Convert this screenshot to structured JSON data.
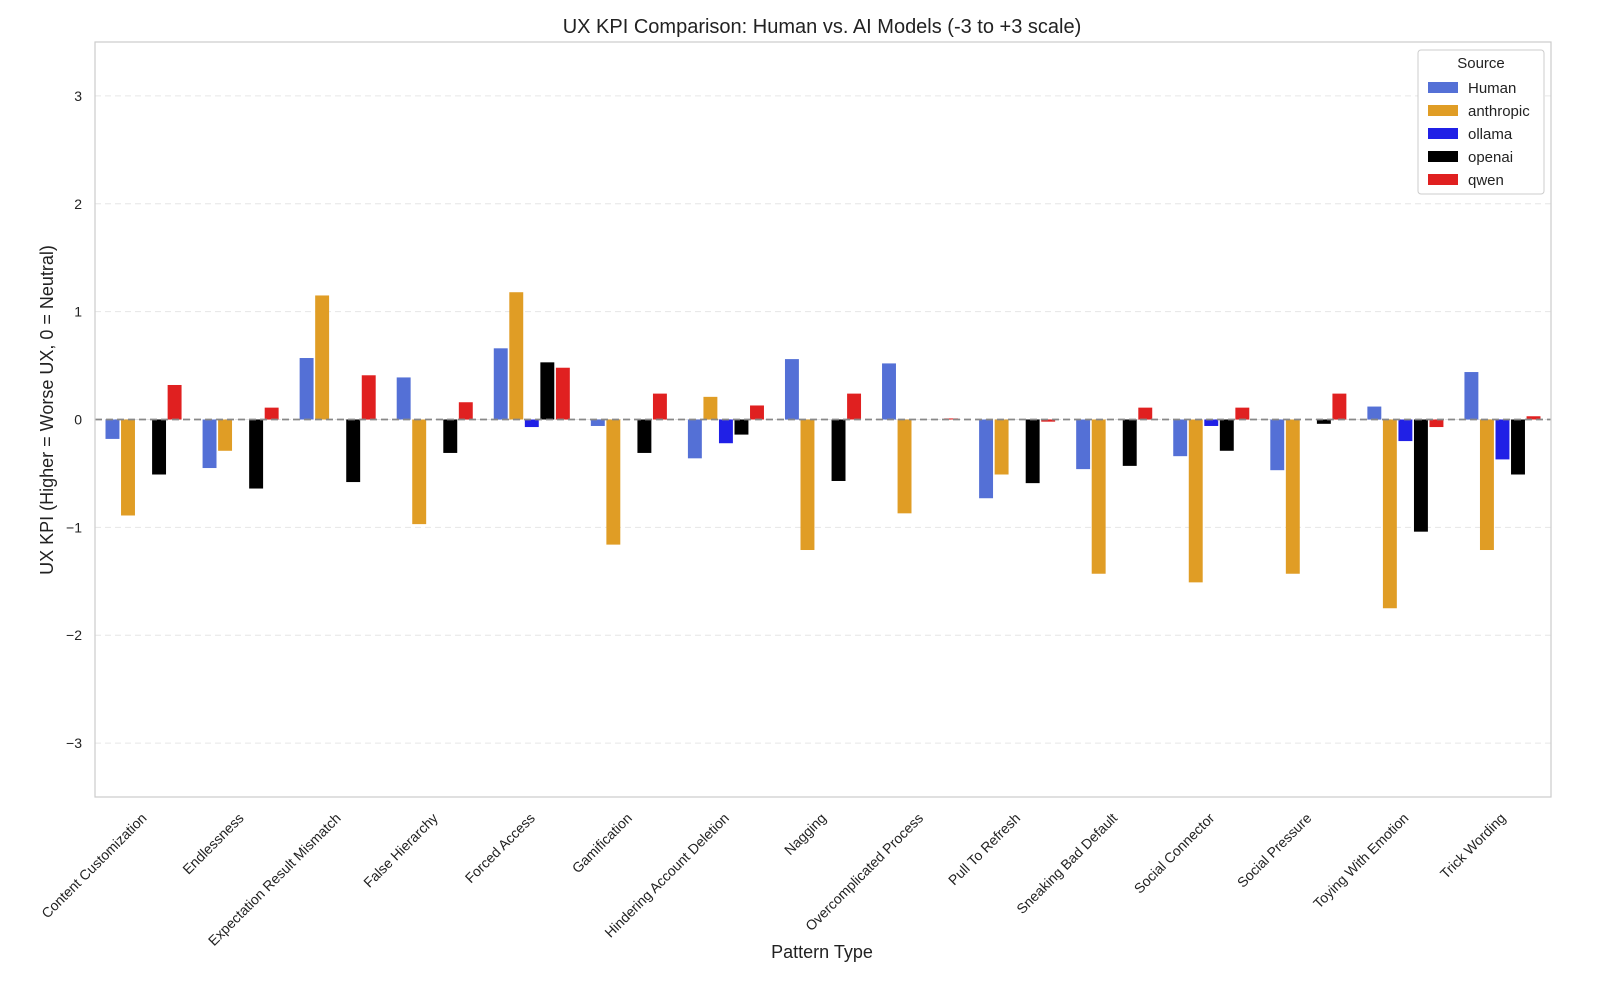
{
  "chart_data": {
    "type": "bar",
    "title": "UX KPI Comparison: Human vs. AI Models (-3 to +3 scale)",
    "xlabel": "Pattern Type",
    "ylabel": "UX KPI (Higher = Worse UX, 0 = Neutral)",
    "ylim": [
      -3.5,
      3.5
    ],
    "yticks": [
      3,
      2,
      1,
      0,
      -1,
      -2,
      -3
    ],
    "ytick_labels": [
      "3",
      "2",
      "1",
      "0",
      "−1",
      "−2",
      "−3"
    ],
    "reference_line": 0,
    "grid": true,
    "legend": {
      "title": "Source",
      "placement": "top-right"
    },
    "categories": [
      "Content Customization",
      "Endlessness",
      "Expectation Result Mismatch",
      "False Hierarchy",
      "Forced Access",
      "Gamification",
      "Hindering Account Deletion",
      "Nagging",
      "Overcomplicated Process",
      "Pull To Refresh",
      "Sneaking Bad Default",
      "Social Connector",
      "Social Pressure",
      "Toying With Emotion",
      "Trick Wording"
    ],
    "series": [
      {
        "name": "Human",
        "color": "#5470d6",
        "values": [
          -0.18,
          -0.45,
          0.57,
          0.39,
          0.66,
          -0.06,
          -0.36,
          0.56,
          0.52,
          -0.73,
          -0.46,
          -0.34,
          -0.47,
          0.12,
          0.44
        ]
      },
      {
        "name": "anthropic",
        "color": "#e09d25",
        "values": [
          -0.89,
          -0.29,
          1.15,
          -0.97,
          1.18,
          -1.16,
          0.21,
          -1.21,
          -0.87,
          -0.51,
          -1.43,
          -1.51,
          -1.43,
          -1.75,
          -1.21
        ]
      },
      {
        "name": "ollama",
        "color": "#2020e6",
        "values": [
          0,
          0,
          0,
          0,
          -0.07,
          0,
          -0.22,
          0,
          0,
          0,
          0,
          -0.06,
          0,
          -0.2,
          -0.37
        ]
      },
      {
        "name": "openai",
        "color": "#000000",
        "values": [
          -0.51,
          -0.64,
          -0.58,
          -0.31,
          0.53,
          -0.31,
          -0.14,
          -0.57,
          0,
          -0.59,
          -0.43,
          -0.29,
          -0.04,
          -1.04,
          -0.51
        ]
      },
      {
        "name": "qwen",
        "color": "#e02020",
        "values": [
          0.32,
          0.11,
          0.41,
          0.16,
          0.48,
          0.24,
          0.13,
          0.24,
          0.01,
          -0.02,
          0.11,
          0.11,
          0.24,
          -0.07,
          0.03
        ]
      }
    ]
  }
}
